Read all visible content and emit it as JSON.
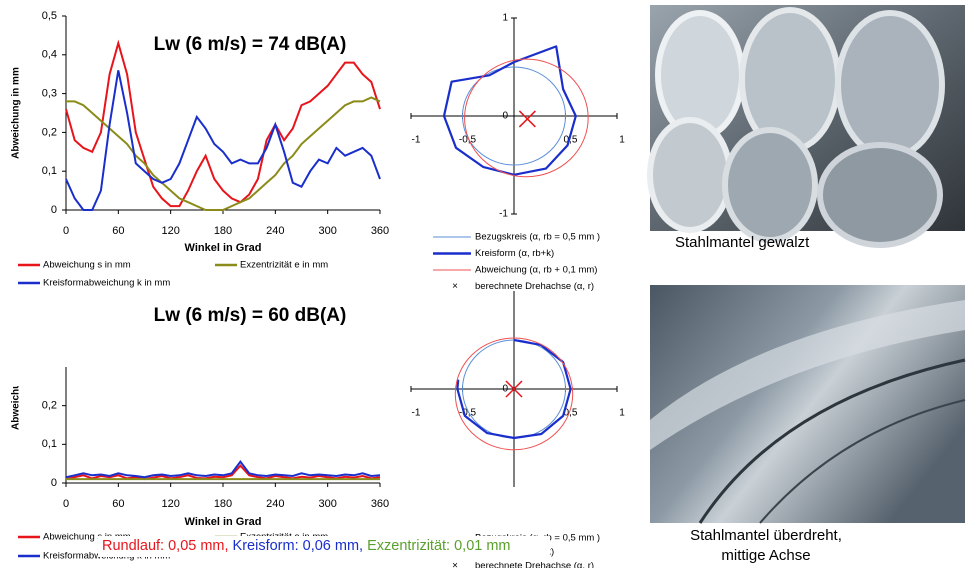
{
  "chart_data": [
    {
      "type": "line",
      "annotation": "Lw (6 m/s) = 74 dB(A)",
      "x_label": "Winkel in Grad",
      "y_label": "Abweichung in mm",
      "x": [
        0,
        10,
        20,
        30,
        40,
        50,
        60,
        70,
        80,
        90,
        100,
        110,
        120,
        130,
        140,
        150,
        160,
        170,
        180,
        190,
        200,
        210,
        220,
        230,
        240,
        250,
        260,
        270,
        280,
        290,
        300,
        310,
        320,
        330,
        340,
        350,
        360
      ],
      "xlim": [
        0,
        360
      ],
      "xticks": [
        0,
        60,
        120,
        180,
        240,
        300,
        360
      ],
      "ylim": [
        0,
        0.5
      ],
      "yticks": [
        0,
        {
          "value": 0.1,
          "label": "0,1"
        },
        {
          "value": 0.2,
          "label": "0,2"
        },
        {
          "value": 0.3,
          "label": "0,3"
        },
        {
          "value": 0.4,
          "label": "0,4"
        },
        {
          "value": 0.5,
          "label": "0,5"
        }
      ],
      "series": [
        {
          "name": "Abweichung s in mm",
          "color": "#e8141b",
          "values": [
            0.26,
            0.18,
            0.16,
            0.15,
            0.2,
            0.35,
            0.43,
            0.35,
            0.2,
            0.13,
            0.06,
            0.03,
            0.01,
            0.01,
            0.05,
            0.1,
            0.14,
            0.08,
            0.05,
            0.03,
            0.02,
            0.04,
            0.08,
            0.18,
            0.22,
            0.18,
            0.21,
            0.27,
            0.28,
            0.3,
            0.32,
            0.35,
            0.38,
            0.38,
            0.35,
            0.33,
            0.26
          ]
        },
        {
          "name": "Exzentrizität e in mm",
          "color": "#8b8b1a",
          "values": [
            0.28,
            0.28,
            0.27,
            0.25,
            0.23,
            0.21,
            0.19,
            0.17,
            0.14,
            0.12,
            0.09,
            0.07,
            0.05,
            0.03,
            0.02,
            0.01,
            0.0,
            0.0,
            0.0,
            0.01,
            0.02,
            0.03,
            0.05,
            0.07,
            0.09,
            0.12,
            0.14,
            0.17,
            0.19,
            0.21,
            0.23,
            0.25,
            0.27,
            0.28,
            0.28,
            0.29,
            0.28
          ]
        },
        {
          "name": "Kreisformabweichung k in mm",
          "color": "#1a2ecc",
          "values": [
            0.08,
            0.03,
            0.0,
            0.0,
            0.05,
            0.22,
            0.36,
            0.25,
            0.12,
            0.1,
            0.08,
            0.07,
            0.08,
            0.12,
            0.18,
            0.24,
            0.21,
            0.17,
            0.15,
            0.12,
            0.13,
            0.12,
            0.12,
            0.16,
            0.22,
            0.15,
            0.07,
            0.06,
            0.1,
            0.13,
            0.12,
            0.16,
            0.14,
            0.15,
            0.16,
            0.14,
            0.08
          ]
        }
      ]
    },
    {
      "type": "polar",
      "xlim": [
        -1,
        1
      ],
      "ylim": [
        -1,
        1
      ],
      "xticks": [
        {
          "value": -1,
          "label": "-1"
        },
        {
          "value": -0.5,
          "label": "-0,5"
        },
        {
          "value": 0.5,
          "label": "0,5"
        },
        1
      ],
      "yticks": [
        1,
        0,
        -1
      ],
      "series": [
        {
          "name": "Bezugskreis (α, rb = 0,5 mm )",
          "color": "#5b8fd8",
          "center": [
            0,
            0
          ],
          "radius": 0.5
        },
        {
          "name": "Kreisform (α, rb+k)",
          "color": "#1a2ecc",
          "closed": true,
          "theta": [
            0,
            30,
            60,
            90,
            120,
            150,
            180,
            210,
            240,
            270,
            300,
            330
          ],
          "r": [
            0.6,
            0.55,
            0.82,
            0.55,
            0.48,
            0.7,
            0.68,
            0.65,
            0.6,
            0.6,
            0.62,
            0.6
          ]
        },
        {
          "name": "Abweichung (α, rb + 0,1 mm)",
          "color": "#f05050",
          "center": [
            0.12,
            -0.02
          ],
          "radius": 0.6
        },
        {
          "name": "berechnete Drehachse (α, r)",
          "color": "#e8141b",
          "point": [
            0.13,
            -0.03
          ]
        }
      ]
    },
    {
      "type": "line",
      "annotation": "Lw (6 m/s) = 60 dB(A)",
      "x_label": "Winkel in Grad",
      "y_label": "Abweichung in mm",
      "x": [
        0,
        10,
        20,
        30,
        40,
        50,
        60,
        70,
        80,
        90,
        100,
        110,
        120,
        130,
        140,
        150,
        160,
        170,
        180,
        190,
        200,
        210,
        220,
        230,
        240,
        250,
        260,
        270,
        280,
        290,
        300,
        310,
        320,
        330,
        340,
        350,
        360
      ],
      "xlim": [
        0,
        360
      ],
      "xticks": [
        0,
        60,
        120,
        180,
        240,
        300,
        360
      ],
      "ylim": [
        0,
        0.3
      ],
      "yticks": [
        0,
        {
          "value": 0.1,
          "label": "0,1"
        },
        {
          "value": 0.2,
          "label": "0,2"
        }
      ],
      "series": [
        {
          "name": "Abweichung s in mm",
          "color": "#e8141b",
          "values": [
            0.01,
            0.015,
            0.02,
            0.012,
            0.018,
            0.015,
            0.02,
            0.012,
            0.015,
            0.01,
            0.014,
            0.018,
            0.012,
            0.015,
            0.02,
            0.013,
            0.012,
            0.016,
            0.015,
            0.02,
            0.045,
            0.02,
            0.015,
            0.012,
            0.018,
            0.015,
            0.012,
            0.016,
            0.014,
            0.018,
            0.015,
            0.012,
            0.016,
            0.014,
            0.018,
            0.012,
            0.015
          ]
        },
        {
          "name": "Exzentrizität e in mm",
          "color": "#8b8b1a",
          "values": [
            0.01,
            0.01,
            0.01,
            0.01,
            0.01,
            0.01,
            0.01,
            0.01,
            0.01,
            0.01,
            0.01,
            0.01,
            0.01,
            0.01,
            0.01,
            0.01,
            0.01,
            0.01,
            0.01,
            0.01,
            0.01,
            0.01,
            0.01,
            0.01,
            0.01,
            0.01,
            0.01,
            0.01,
            0.01,
            0.01,
            0.01,
            0.01,
            0.01,
            0.01,
            0.01,
            0.01,
            0.01
          ]
        },
        {
          "name": "Kreisformabweichung k in mm",
          "color": "#1a2ecc",
          "values": [
            0.015,
            0.02,
            0.025,
            0.02,
            0.022,
            0.018,
            0.025,
            0.02,
            0.018,
            0.015,
            0.02,
            0.022,
            0.018,
            0.02,
            0.025,
            0.02,
            0.018,
            0.022,
            0.02,
            0.025,
            0.055,
            0.025,
            0.02,
            0.018,
            0.022,
            0.02,
            0.018,
            0.025,
            0.02,
            0.022,
            0.02,
            0.018,
            0.022,
            0.02,
            0.025,
            0.018,
            0.02
          ]
        }
      ]
    },
    {
      "type": "polar",
      "xlim": [
        -1,
        1
      ],
      "ylim": [
        -1,
        1
      ],
      "xticks": [
        {
          "value": -1,
          "label": "-1"
        },
        {
          "value": -0.5,
          "label": "-0,5"
        },
        {
          "value": 0.5,
          "label": "0,5"
        },
        1
      ],
      "yticks": [
        0
      ],
      "series": [
        {
          "name": "Bezugskreis (α, rb = 0,5 mm )",
          "color": "#5b8fd8",
          "center": [
            0,
            0
          ],
          "radius": 0.5
        },
        {
          "name": "Kreisform (α, rb+k)",
          "color": "#1a2ecc",
          "closed": false,
          "theta": [
            90,
            60,
            30,
            0,
            -30,
            -60,
            -90,
            -120,
            -150,
            -180,
            -190
          ],
          "r": [
            0.5,
            0.52,
            0.55,
            0.55,
            0.55,
            0.53,
            0.5,
            0.52,
            0.55,
            0.55,
            0.55
          ]
        },
        {
          "color": "#f05050",
          "center": [
            0,
            -0.05
          ],
          "radius": 0.57
        },
        {
          "name": "berechnete Drehachse (α, r)",
          "color": "#e8141b",
          "point": [
            0,
            0
          ]
        }
      ]
    }
  ],
  "summary": [
    {
      "text": "Rundlauf: 0,05 mm,",
      "color": "#e8141b"
    },
    {
      "text": "Kreisform: 0,06 mm,",
      "color": "#1a2ecc"
    },
    {
      "text": "Exzentrizität: 0,01 mm",
      "color": "#5aa02c"
    }
  ],
  "photos": [
    {
      "caption": [
        "Stahlmantel gewalzt"
      ]
    },
    {
      "caption": [
        "Stahlmantel überdreht,",
        "mittige Achse"
      ]
    }
  ]
}
